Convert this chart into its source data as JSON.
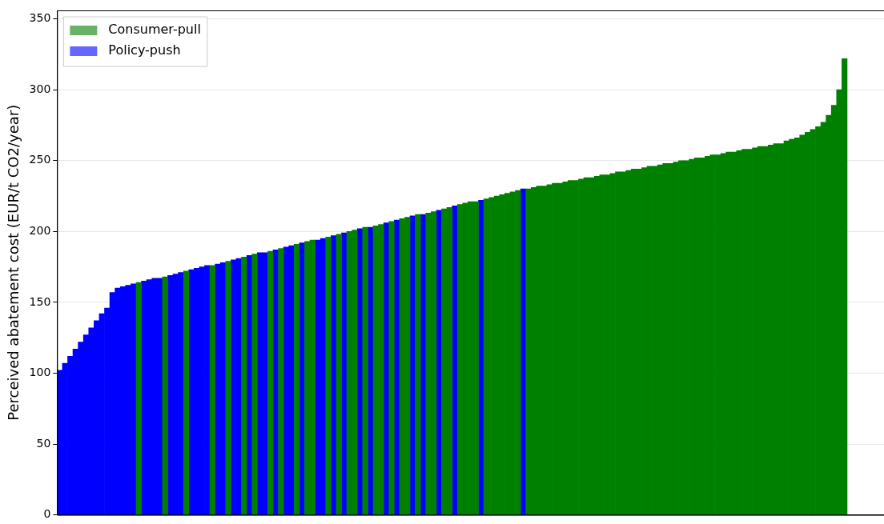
{
  "chart_data": {
    "type": "bar",
    "ylabel": "Perceived abatement cost (EUR/t CO2/year)",
    "stacked": true,
    "grid": "y",
    "legend": "top left",
    "tick_labels": "y",
    "ylim": [
      0,
      356
    ],
    "yticks": [
      0,
      50,
      100,
      150,
      200,
      250,
      300,
      350
    ],
    "categories": [
      null,
      null,
      null,
      null,
      null,
      null,
      null,
      null,
      null,
      null,
      null,
      null,
      null,
      null,
      null,
      null,
      null,
      null,
      null,
      null,
      null,
      null,
      null,
      null,
      null,
      null,
      null,
      null,
      null,
      null,
      null,
      null,
      null,
      null,
      null,
      null,
      null,
      null,
      null,
      null,
      null,
      null,
      null,
      null,
      null,
      null,
      null,
      null,
      null,
      null,
      null,
      null,
      null,
      null,
      null,
      null,
      null,
      null,
      null,
      null,
      null,
      null,
      null,
      null,
      null,
      null,
      null,
      null,
      null,
      null,
      null,
      null,
      null,
      null,
      null,
      null,
      null,
      null,
      null,
      null,
      null,
      null,
      null,
      null,
      null,
      null,
      null,
      null,
      null,
      null,
      null,
      null,
      null,
      null,
      null,
      null,
      null,
      null,
      null,
      null,
      null,
      null,
      null,
      null,
      null,
      null,
      null,
      null,
      null,
      null,
      null,
      null,
      null,
      null,
      null,
      null,
      null,
      null,
      null,
      null,
      null,
      null,
      null,
      null,
      null,
      null,
      null,
      null,
      null,
      null,
      null,
      null,
      null,
      null,
      null,
      null,
      null,
      null,
      null,
      null,
      null,
      null,
      null,
      null,
      null,
      null,
      null,
      null,
      null,
      null,
      null,
      null,
      null,
      null,
      null,
      null,
      null
    ],
    "series": [
      {
        "name": "Consumer-pull",
        "color": "#008000",
        "values": [
          null,
          null,
          null,
          null,
          null,
          null,
          null,
          null,
          null,
          null,
          null,
          null,
          null,
          null,
          null,
          164,
          null,
          null,
          null,
          null,
          168,
          null,
          null,
          null,
          172,
          null,
          null,
          null,
          null,
          176,
          null,
          null,
          179,
          null,
          null,
          182,
          null,
          184,
          null,
          null,
          186,
          null,
          188,
          null,
          null,
          191,
          null,
          193,
          194,
          null,
          null,
          196,
          null,
          198,
          null,
          200,
          201,
          null,
          203,
          null,
          204,
          205,
          null,
          207,
          null,
          209,
          210,
          null,
          212,
          null,
          213,
          214,
          null,
          216,
          217,
          null,
          219,
          220,
          221,
          221,
          null,
          223,
          224,
          225,
          226,
          227,
          228,
          229,
          null,
          230,
          231,
          232,
          232,
          233,
          234,
          234,
          235,
          236,
          236,
          237,
          238,
          238,
          239,
          240,
          240,
          241,
          242,
          242,
          243,
          244,
          244,
          245,
          246,
          246,
          247,
          248,
          248,
          249,
          250,
          250,
          251,
          252,
          252,
          253,
          254,
          254,
          255,
          256,
          256,
          257,
          258,
          258,
          259,
          260,
          260,
          261,
          262,
          262,
          264,
          265,
          266,
          268,
          270,
          272,
          274,
          277,
          282,
          289,
          300,
          322,
          null,
          null,
          null,
          null,
          null,
          null,
          null
        ]
      },
      {
        "name": "Policy-push",
        "color": "#0000ff",
        "values": [
          102,
          107,
          112,
          117,
          122,
          127,
          132,
          137,
          142,
          146,
          157,
          160,
          161,
          162,
          163,
          null,
          165,
          166,
          167,
          167,
          null,
          169,
          170,
          171,
          null,
          173,
          174,
          175,
          176,
          null,
          177,
          178,
          null,
          180,
          181,
          null,
          183,
          null,
          185,
          185,
          null,
          187,
          null,
          189,
          190,
          null,
          192,
          null,
          null,
          194,
          195,
          null,
          197,
          null,
          199,
          null,
          null,
          202,
          null,
          203,
          null,
          null,
          206,
          null,
          208,
          null,
          null,
          211,
          null,
          212,
          null,
          null,
          215,
          null,
          null,
          218,
          null,
          null,
          null,
          null,
          222,
          null,
          null,
          null,
          null,
          null,
          null,
          null,
          230,
          null,
          null,
          null,
          null,
          null,
          null,
          null,
          null,
          null,
          null,
          null,
          null,
          null,
          null,
          null,
          null,
          null,
          null,
          null,
          null,
          null,
          null,
          null,
          null,
          null,
          null,
          null,
          null,
          null,
          null,
          null,
          null,
          null,
          null,
          null,
          null,
          null,
          null,
          null,
          null,
          null,
          null,
          null,
          null,
          null,
          null,
          null,
          null,
          null,
          null,
          null,
          null,
          null,
          null,
          null,
          null,
          null,
          null,
          null,
          null,
          null,
          null,
          null,
          null,
          null,
          null,
          null,
          null
        ]
      }
    ]
  }
}
